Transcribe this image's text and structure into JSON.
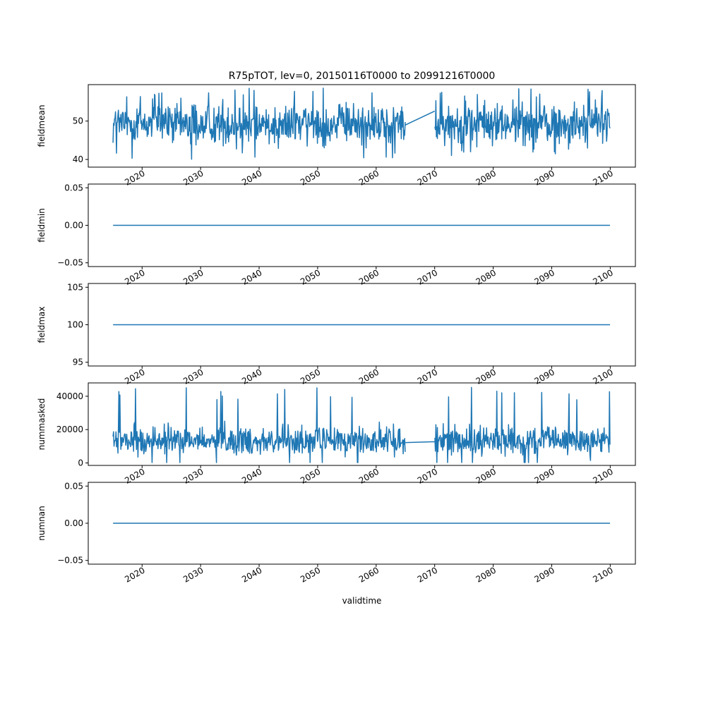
{
  "figure": {
    "title": "R75pTOT, lev=0, 20150116T0000 to 20991216T0000",
    "xlabel": "validtime"
  },
  "colors": {
    "series": "#1f77b4",
    "axes": "#000000",
    "background": "#ffffff"
  },
  "chart_data": [
    {
      "type": "line",
      "ylabel": "fieldmean",
      "xlim": [
        2010.8,
        2104.3
      ],
      "ylim": [
        38.0,
        59.5
      ],
      "yticks": [
        40,
        50
      ],
      "ytick_labels": [
        "40",
        "50"
      ],
      "xticks": [
        2020,
        2030,
        2040,
        2050,
        2060,
        2070,
        2080,
        2090,
        2100
      ],
      "xtick_labels": [
        "2020",
        "2030",
        "2040",
        "2050",
        "2060",
        "2070",
        "2080",
        "2090",
        "2100"
      ],
      "grid": false,
      "series": [
        {
          "kind": "monthly_noise",
          "segments": [
            [
              2015.04,
              2064.96
            ],
            [
              2070.04,
              2099.96
            ]
          ],
          "gap_connector": [
            [
              2065.0,
              49.0
            ],
            [
              2070.0,
              52.6
            ]
          ],
          "mean": 49.3,
          "amplitude": 4.5,
          "min": 38.6,
          "max": 58.6
        }
      ]
    },
    {
      "type": "line",
      "ylabel": "fieldmin",
      "xlim": [
        2010.8,
        2104.3
      ],
      "ylim": [
        -0.055,
        0.055
      ],
      "yticks": [
        -0.05,
        0.0,
        0.05
      ],
      "ytick_labels": [
        "−0.05",
        "0.00",
        "0.05"
      ],
      "xticks": [
        2020,
        2030,
        2040,
        2050,
        2060,
        2070,
        2080,
        2090,
        2100
      ],
      "xtick_labels": [
        "2020",
        "2030",
        "2040",
        "2050",
        "2060",
        "2070",
        "2080",
        "2090",
        "2100"
      ],
      "grid": false,
      "series": [
        {
          "kind": "constant",
          "x": [
            2015.04,
            2099.96
          ],
          "y": [
            0,
            0
          ]
        }
      ]
    },
    {
      "type": "line",
      "ylabel": "fieldmax",
      "xlim": [
        2010.8,
        2104.3
      ],
      "ylim": [
        94.5,
        105.5
      ],
      "yticks": [
        95,
        100,
        105
      ],
      "ytick_labels": [
        "95",
        "100",
        "105"
      ],
      "xticks": [
        2020,
        2030,
        2040,
        2050,
        2060,
        2070,
        2080,
        2090,
        2100
      ],
      "xtick_labels": [
        "2020",
        "2030",
        "2040",
        "2050",
        "2060",
        "2070",
        "2080",
        "2090",
        "2100"
      ],
      "grid": false,
      "series": [
        {
          "kind": "constant",
          "x": [
            2015.04,
            2099.96
          ],
          "y": [
            100,
            100
          ]
        }
      ]
    },
    {
      "type": "line",
      "ylabel": "nummasked",
      "xlim": [
        2010.8,
        2104.3
      ],
      "ylim": [
        -1500,
        48000
      ],
      "yticks": [
        0,
        20000,
        40000
      ],
      "ytick_labels": [
        "0",
        "20000",
        "40000"
      ],
      "xticks": [
        2020,
        2030,
        2040,
        2050,
        2060,
        2070,
        2080,
        2090,
        2100
      ],
      "xtick_labels": [
        "2020",
        "2030",
        "2040",
        "2050",
        "2060",
        "2070",
        "2080",
        "2090",
        "2100"
      ],
      "grid": false,
      "series": [
        {
          "kind": "monthly_noise",
          "segments": [
            [
              2015.04,
              2064.96
            ],
            [
              2070.04,
              2099.96
            ]
          ],
          "gap_connector": [
            [
              2065.0,
              12200
            ],
            [
              2070.0,
              12700
            ]
          ],
          "mean": 13500,
          "amplitude": 7000,
          "min": 200,
          "max": 46000
        }
      ]
    },
    {
      "type": "line",
      "ylabel": "numnan",
      "xlim": [
        2010.8,
        2104.3
      ],
      "ylim": [
        -0.055,
        0.055
      ],
      "yticks": [
        -0.05,
        0.0,
        0.05
      ],
      "ytick_labels": [
        "−0.05",
        "0.00",
        "0.05"
      ],
      "xticks": [
        2020,
        2030,
        2040,
        2050,
        2060,
        2070,
        2080,
        2090,
        2100
      ],
      "xtick_labels": [
        "2020",
        "2030",
        "2040",
        "2050",
        "2060",
        "2070",
        "2080",
        "2090",
        "2100"
      ],
      "grid": false,
      "series": [
        {
          "kind": "constant",
          "x": [
            2015.04,
            2099.96
          ],
          "y": [
            0,
            0
          ]
        }
      ]
    }
  ]
}
